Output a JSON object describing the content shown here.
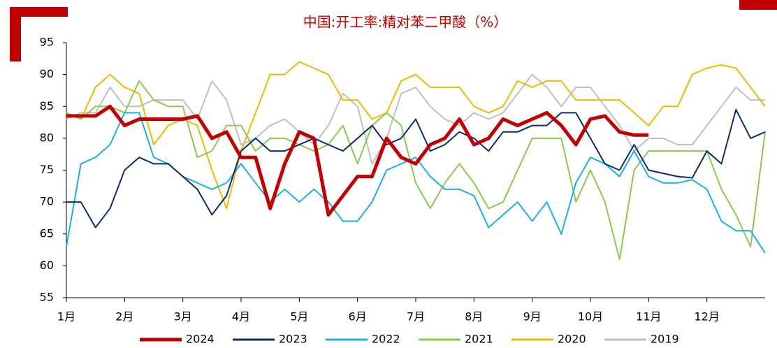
{
  "chart_data": {
    "type": "line",
    "title": "中国:开工率:精对苯二甲酸（%）",
    "x": [
      1,
      1.25,
      1.5,
      1.75,
      2,
      2.25,
      2.5,
      2.75,
      3,
      3.25,
      3.5,
      3.75,
      4,
      4.25,
      4.5,
      4.75,
      5,
      5.25,
      5.5,
      5.75,
      6,
      6.25,
      6.5,
      6.75,
      7,
      7.25,
      7.5,
      7.75,
      8,
      8.25,
      8.5,
      8.75,
      9,
      9.25,
      9.5,
      9.75,
      10,
      10.25,
      10.5,
      10.75,
      11,
      11.25,
      11.5,
      11.75,
      12,
      12.25,
      12.5,
      12.75,
      13
    ],
    "xlim": [
      1,
      13
    ],
    "xticks": [
      {
        "value": 1,
        "label": "1月"
      },
      {
        "value": 2,
        "label": "2月"
      },
      {
        "value": 3,
        "label": "3月"
      },
      {
        "value": 4,
        "label": "4月"
      },
      {
        "value": 5,
        "label": "5月"
      },
      {
        "value": 6,
        "label": "6月"
      },
      {
        "value": 7,
        "label": "7月"
      },
      {
        "value": 8,
        "label": "8月"
      },
      {
        "value": 9,
        "label": "9月"
      },
      {
        "value": 10,
        "label": "10月"
      },
      {
        "value": 11,
        "label": "11月"
      },
      {
        "value": 12,
        "label": "12月"
      }
    ],
    "ylim": [
      55,
      95
    ],
    "yticks": [
      55,
      60,
      65,
      70,
      75,
      80,
      85,
      90,
      95
    ],
    "grid": false,
    "legend": "bottom",
    "series": [
      {
        "name": "2024",
        "color": "#c00000",
        "values": [
          83.5,
          83.5,
          83.5,
          85,
          82,
          83,
          83,
          83,
          83,
          83.5,
          80,
          81,
          77,
          77,
          69,
          76,
          81,
          80,
          68,
          71,
          74,
          74,
          80,
          77,
          76,
          79,
          80,
          83,
          79,
          80,
          83,
          82,
          83,
          84,
          82,
          79,
          83,
          83.5,
          81,
          80.5,
          80.5,
          null,
          null,
          null,
          null,
          null,
          null,
          null,
          null
        ]
      },
      {
        "name": "2023",
        "color": "#0c2c6b",
        "values": [
          70,
          70,
          66,
          69,
          75,
          77,
          76,
          76,
          74,
          72,
          68,
          71,
          78,
          80,
          78,
          78,
          79,
          80,
          79,
          78,
          80,
          82,
          79,
          80,
          83,
          78,
          79,
          81,
          80,
          78,
          81,
          81,
          82,
          82,
          84,
          84,
          80,
          76,
          75,
          79,
          75,
          74.5,
          74,
          73.8,
          78,
          76,
          84.5,
          80,
          81
        ]
      },
      {
        "name": "2022",
        "color": "#1ab0e8",
        "values": [
          63,
          76,
          77,
          79,
          84,
          84,
          77,
          76,
          74,
          73,
          72,
          73,
          76,
          73,
          70,
          72,
          70,
          72,
          70,
          67,
          67,
          70,
          75,
          76,
          77,
          74,
          72,
          72,
          71,
          66,
          68,
          70,
          67,
          70,
          65,
          73,
          77,
          76,
          74,
          78,
          74,
          73,
          73,
          73.5,
          72,
          67,
          65.5,
          65.5,
          62
        ]
      },
      {
        "name": "2021",
        "color": "#8cc850",
        "values": [
          84,
          83,
          85,
          85,
          84,
          89,
          86,
          85,
          85,
          77,
          78,
          82,
          82,
          78,
          80,
          80,
          79,
          78,
          79,
          82,
          76,
          82,
          84,
          82,
          73,
          69,
          73,
          76,
          73,
          69,
          70,
          75,
          80,
          80,
          80,
          70,
          75,
          70,
          61,
          75,
          78,
          78,
          78,
          78,
          78,
          72,
          68,
          63,
          81
        ]
      },
      {
        "name": "2020",
        "color": "#f0b800",
        "values": [
          84,
          83,
          88,
          90,
          88,
          87,
          79,
          82,
          83,
          82,
          75,
          69,
          78,
          84,
          90,
          90,
          92,
          91,
          90,
          86,
          86,
          83,
          84,
          89,
          90,
          88,
          88,
          88,
          85,
          84,
          85,
          89,
          88,
          89,
          89,
          86,
          86,
          86,
          86,
          84,
          82,
          85,
          85,
          90,
          91,
          91.5,
          91,
          88,
          85
        ]
      },
      {
        "name": "2019",
        "color": "#bfbfbf",
        "values": [
          83,
          84,
          84,
          88,
          85,
          85,
          86,
          86,
          86,
          83,
          89,
          86,
          79,
          80,
          82,
          83,
          81,
          79,
          82,
          87,
          85,
          76,
          80,
          87,
          88,
          85,
          83,
          82,
          84,
          83,
          84,
          87,
          90,
          88,
          85,
          88,
          88,
          85,
          82,
          78,
          80,
          80,
          79,
          79,
          82,
          85,
          88,
          86,
          86
        ]
      }
    ]
  }
}
